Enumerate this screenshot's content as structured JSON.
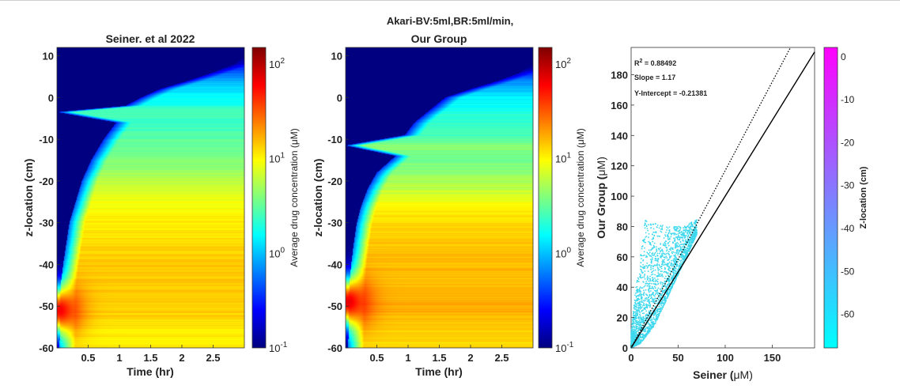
{
  "suptitle": "Akari-BV:5ml,BR:5ml/min,",
  "chart_data": [
    {
      "type": "heatmap",
      "title": "Seiner. et al 2022",
      "xlabel": "Time (hr)",
      "ylabel": "z-location (cm)",
      "xticks": [
        "0.5",
        "1",
        "1.5",
        "2",
        "2.5"
      ],
      "yticks": [
        "10",
        "0",
        "-10",
        "-20",
        "-30",
        "-40",
        "-50",
        "-60"
      ],
      "xlim": [
        0,
        3.0
      ],
      "ylim": [
        -60,
        12
      ],
      "colormap": "jet",
      "color_scale": "log",
      "colorbar": {
        "label": "Average drug concentration (μM)",
        "ticks": [
          "10−1",
          "100",
          "101",
          "102"
        ],
        "tick_base": "10",
        "tick_exps": [
          "-1",
          "0",
          "1",
          "2"
        ],
        "range": [
          0.1,
          150
        ]
      },
      "profile": {
        "z": [
          12,
          10,
          8,
          6,
          4,
          2,
          0,
          -2,
          -3.5,
          -6,
          -10,
          -15,
          -20,
          -25,
          -30,
          -35,
          -40,
          -45,
          -50,
          -53,
          -56,
          -60
        ],
        "front_time_hr": [
          3.0,
          3.0,
          2.85,
          2.5,
          2.1,
          1.65,
          1.35,
          1.1,
          0.0,
          0.95,
          0.75,
          0.55,
          0.4,
          0.3,
          0.2,
          0.15,
          0.1,
          0.06,
          0.05,
          0.05,
          0.05,
          0.04
        ],
        "plateau_log10_conc": [
          -1.0,
          -1.0,
          -0.6,
          -0.3,
          -0.05,
          0.1,
          0.2,
          0.25,
          0.45,
          0.35,
          0.5,
          0.6,
          0.75,
          0.95,
          1.05,
          1.1,
          1.15,
          1.15,
          1.15,
          1.1,
          1.05,
          1.05
        ],
        "early_peak_z_cm": -51,
        "early_peak_time_hr": 0.05,
        "early_peak_log10_conc": 1.8
      }
    },
    {
      "type": "heatmap",
      "title": "Our Group",
      "xlabel": "Time (hr)",
      "ylabel": "z-location (cm)",
      "xticks": [
        "0.5",
        "1",
        "1.5",
        "2",
        "2.5"
      ],
      "yticks": [
        "10",
        "0",
        "-10",
        "-20",
        "-30",
        "-40",
        "-50",
        "-60"
      ],
      "xlim": [
        0,
        3.0
      ],
      "ylim": [
        -60,
        12
      ],
      "colormap": "jet",
      "color_scale": "log",
      "colorbar": {
        "label": "Average drug concentration (μM)",
        "ticks": [
          "10−1",
          "100",
          "101",
          "102"
        ],
        "tick_base": "10",
        "tick_exps": [
          "-1",
          "0",
          "1",
          "2"
        ],
        "range": [
          0.1,
          150
        ]
      },
      "profile": {
        "z": [
          12,
          10,
          8,
          6,
          4,
          2,
          0,
          -3,
          -6,
          -9,
          -11.5,
          -14,
          -18,
          -22,
          -26,
          -30,
          -35,
          -40,
          -45,
          -50,
          -55,
          -60
        ],
        "front_time_hr": [
          3.0,
          3.0,
          3.0,
          2.8,
          2.45,
          2.0,
          1.6,
          1.35,
          1.1,
          0.95,
          0.0,
          0.8,
          0.5,
          0.35,
          0.25,
          0.18,
          0.13,
          0.09,
          0.06,
          0.05,
          0.05,
          0.04
        ],
        "plateau_log10_conc": [
          -1.0,
          -1.0,
          -1.0,
          -0.5,
          -0.2,
          0.0,
          0.15,
          0.25,
          0.35,
          0.4,
          0.6,
          0.55,
          0.65,
          0.8,
          1.0,
          1.1,
          1.15,
          1.2,
          1.2,
          1.25,
          1.15,
          1.1
        ],
        "early_peak_z_cm": -49,
        "early_peak_time_hr": 0.05,
        "early_peak_log10_conc": 1.85
      }
    },
    {
      "type": "scatter",
      "xlabel": "Seiner (μM)",
      "xlabel_main": "Seiner (",
      "xlabel_unit": "μM)",
      "ylabel": "Our Group (μM)",
      "ylabel_main": "Our Group (",
      "ylabel_unit": "μM)",
      "xlim": [
        0,
        195
      ],
      "ylim": [
        0,
        198
      ],
      "xticks": [
        0,
        50,
        100,
        150
      ],
      "yticks": [
        0,
        20,
        40,
        60,
        80,
        100,
        120,
        140,
        160,
        180
      ],
      "annotations": {
        "r2_prefix": "R",
        "r2_sup": "2",
        "r2_value": " = 0.88492",
        "slope": "Slope = 1.17",
        "intercept": "Y-Intercept = -0.21381"
      },
      "fit_line": {
        "slope": 1.17,
        "intercept": -0.21381,
        "style": "dotted"
      },
      "identity_line": {
        "slope": 1,
        "intercept": 0,
        "style": "solid"
      },
      "point_color": "#3ed8ee",
      "point_cloud": {
        "x_range": [
          0,
          70
        ],
        "y_upper_envelope": [
          [
            0,
            10
          ],
          [
            5,
            40
          ],
          [
            10,
            60
          ],
          [
            15,
            85
          ],
          [
            25,
            82
          ],
          [
            40,
            80
          ],
          [
            55,
            80
          ],
          [
            70,
            85
          ]
        ],
        "y_lower_envelope": [
          [
            0,
            0
          ],
          [
            10,
            3
          ],
          [
            25,
            15
          ],
          [
            40,
            35
          ],
          [
            55,
            55
          ],
          [
            70,
            75
          ]
        ]
      },
      "colorbar": {
        "label": "Z-location (cm)",
        "ticks": [
          "0",
          "-10",
          "-20",
          "-30",
          "-40",
          "-50",
          "-60"
        ],
        "range": [
          -68,
          2
        ],
        "colors": [
          "#00ffff",
          "#ff00ff"
        ]
      }
    }
  ]
}
